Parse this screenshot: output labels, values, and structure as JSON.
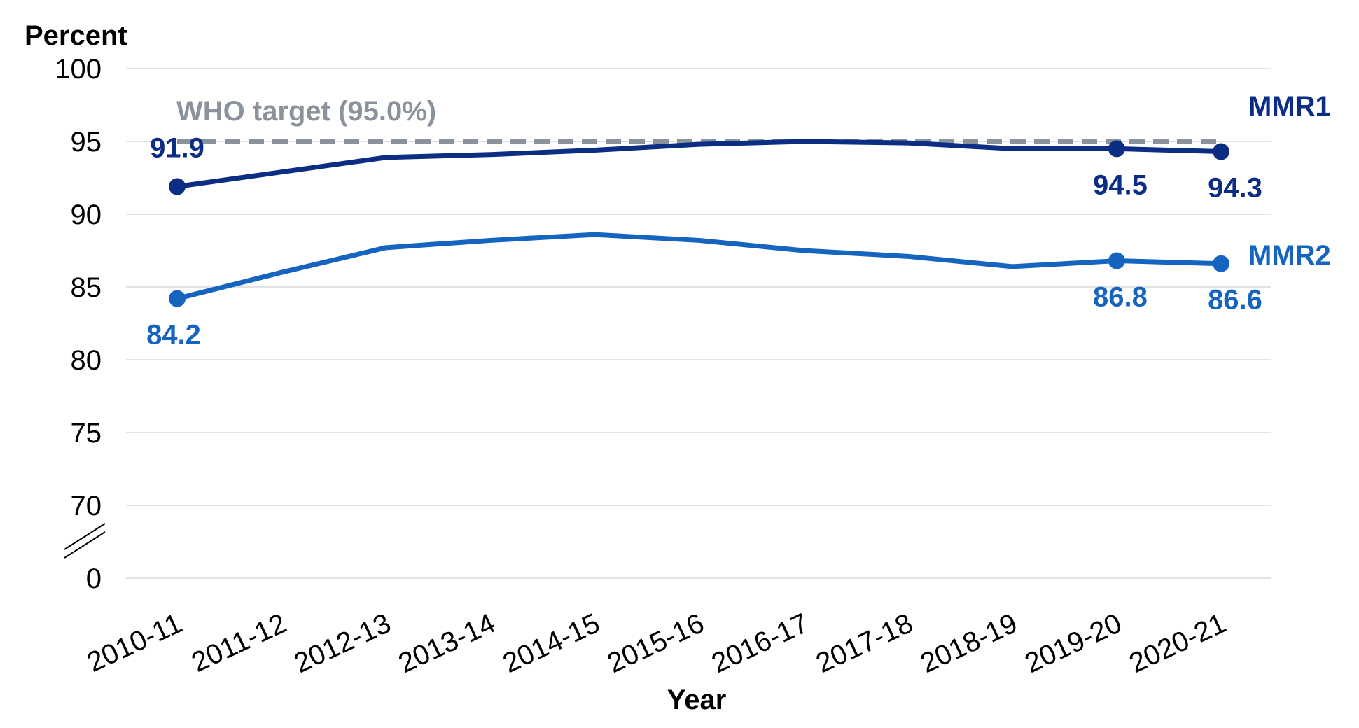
{
  "chart_data": {
    "type": "line",
    "ylabel": "Percent",
    "xlabel": "Year",
    "categories": [
      "2010-11",
      "2011-12",
      "2012-13",
      "2013-14",
      "2014-15",
      "2015-16",
      "2016-17",
      "2017-18",
      "2018-19",
      "2019-20",
      "2020-21"
    ],
    "yticks": [
      {
        "value": 0,
        "label": "0"
      },
      {
        "value": 70,
        "label": "70"
      },
      {
        "value": 75,
        "label": "75"
      },
      {
        "value": 80,
        "label": "80"
      },
      {
        "value": 85,
        "label": "85"
      },
      {
        "value": 90,
        "label": "90"
      },
      {
        "value": 95,
        "label": "95"
      },
      {
        "value": 100,
        "label": "100"
      }
    ],
    "ylim": [
      0,
      100
    ],
    "axis_break": "between 0 and 70",
    "grid": "horizontal",
    "series": [
      {
        "name": "MMR1",
        "color": "#0b2d84",
        "values": [
          91.9,
          92.9,
          93.9,
          94.1,
          94.4,
          94.8,
          95.0,
          94.9,
          94.5,
          94.5,
          94.3
        ],
        "labeled": [
          {
            "index": 0,
            "text": "91.9"
          },
          {
            "index": 9,
            "text": "94.5"
          },
          {
            "index": 10,
            "text": "94.3"
          }
        ]
      },
      {
        "name": "MMR2",
        "color": "#1565c0",
        "values": [
          84.2,
          86.0,
          87.7,
          88.2,
          88.6,
          88.2,
          87.5,
          87.1,
          86.4,
          86.8,
          86.6
        ],
        "labeled": [
          {
            "index": 0,
            "text": "84.2"
          },
          {
            "index": 9,
            "text": "86.8"
          },
          {
            "index": 10,
            "text": "86.6"
          }
        ]
      }
    ],
    "reference_line": {
      "label": "WHO target (95.0%)",
      "value": 95.0,
      "color": "#8a939c",
      "style": "dashed"
    }
  }
}
